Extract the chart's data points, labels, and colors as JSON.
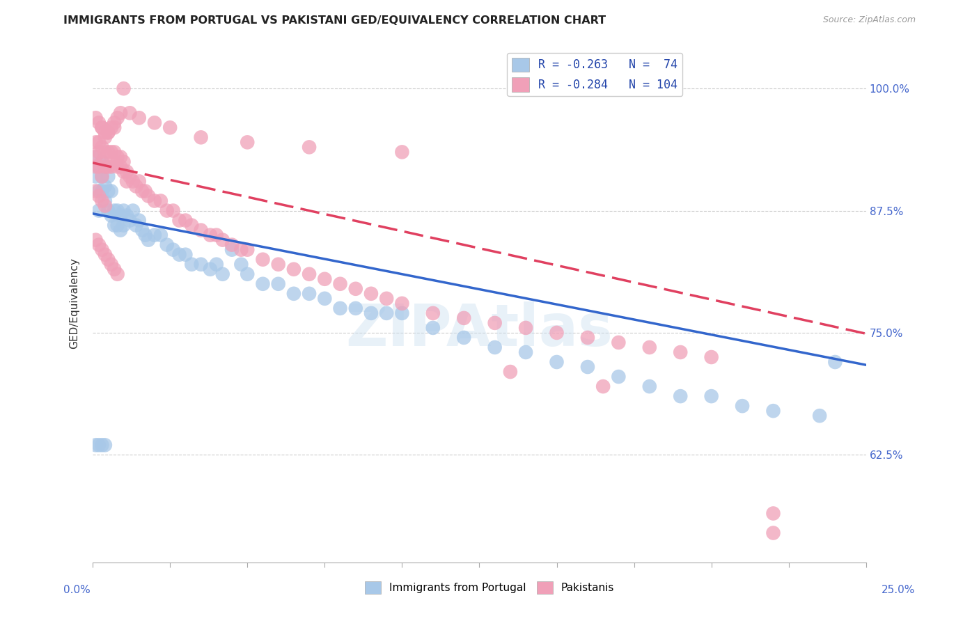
{
  "title": "IMMIGRANTS FROM PORTUGAL VS PAKISTANI GED/EQUIVALENCY CORRELATION CHART",
  "source": "Source: ZipAtlas.com",
  "ylabel": "GED/Equivalency",
  "ytick_labels": [
    "62.5%",
    "75.0%",
    "87.5%",
    "100.0%"
  ],
  "ytick_values": [
    0.625,
    0.75,
    0.875,
    1.0
  ],
  "xlim": [
    0.0,
    0.25
  ],
  "ylim": [
    0.515,
    1.045
  ],
  "legend_blue_r": "R = -0.263",
  "legend_blue_n": "N =  74",
  "legend_pink_r": "R = -0.284",
  "legend_pink_n": "N = 104",
  "blue_color": "#a8c8e8",
  "pink_color": "#f0a0b8",
  "blue_line_color": "#3366cc",
  "pink_line_color": "#e04060",
  "watermark": "ZIPAtlas",
  "blue_intercept": 0.872,
  "blue_slope": -0.62,
  "pink_intercept": 0.924,
  "pink_slope": -0.7,
  "blue_points_x": [
    0.001,
    0.001,
    0.002,
    0.002,
    0.002,
    0.003,
    0.003,
    0.003,
    0.004,
    0.004,
    0.004,
    0.005,
    0.005,
    0.005,
    0.006,
    0.006,
    0.007,
    0.007,
    0.008,
    0.008,
    0.009,
    0.009,
    0.01,
    0.01,
    0.011,
    0.012,
    0.013,
    0.014,
    0.015,
    0.016,
    0.017,
    0.018,
    0.02,
    0.022,
    0.024,
    0.026,
    0.028,
    0.03,
    0.032,
    0.035,
    0.038,
    0.04,
    0.042,
    0.045,
    0.048,
    0.05,
    0.055,
    0.06,
    0.065,
    0.07,
    0.075,
    0.08,
    0.085,
    0.09,
    0.095,
    0.1,
    0.11,
    0.12,
    0.13,
    0.14,
    0.15,
    0.16,
    0.17,
    0.18,
    0.19,
    0.2,
    0.21,
    0.22,
    0.235,
    0.24,
    0.001,
    0.002,
    0.003,
    0.004
  ],
  "blue_points_y": [
    0.93,
    0.91,
    0.895,
    0.875,
    0.92,
    0.91,
    0.895,
    0.925,
    0.9,
    0.885,
    0.92,
    0.895,
    0.91,
    0.875,
    0.895,
    0.87,
    0.875,
    0.86,
    0.875,
    0.86,
    0.87,
    0.855,
    0.875,
    0.86,
    0.87,
    0.865,
    0.875,
    0.86,
    0.865,
    0.855,
    0.85,
    0.845,
    0.85,
    0.85,
    0.84,
    0.835,
    0.83,
    0.83,
    0.82,
    0.82,
    0.815,
    0.82,
    0.81,
    0.835,
    0.82,
    0.81,
    0.8,
    0.8,
    0.79,
    0.79,
    0.785,
    0.775,
    0.775,
    0.77,
    0.77,
    0.77,
    0.755,
    0.745,
    0.735,
    0.73,
    0.72,
    0.715,
    0.705,
    0.695,
    0.685,
    0.685,
    0.675,
    0.67,
    0.665,
    0.72,
    0.635,
    0.635,
    0.635,
    0.635
  ],
  "pink_points_x": [
    0.001,
    0.001,
    0.001,
    0.002,
    0.002,
    0.002,
    0.003,
    0.003,
    0.003,
    0.003,
    0.004,
    0.004,
    0.004,
    0.005,
    0.005,
    0.005,
    0.006,
    0.006,
    0.007,
    0.007,
    0.007,
    0.008,
    0.008,
    0.009,
    0.009,
    0.01,
    0.01,
    0.011,
    0.011,
    0.012,
    0.013,
    0.014,
    0.015,
    0.016,
    0.017,
    0.018,
    0.02,
    0.022,
    0.024,
    0.026,
    0.028,
    0.03,
    0.032,
    0.035,
    0.038,
    0.04,
    0.042,
    0.045,
    0.048,
    0.05,
    0.055,
    0.06,
    0.065,
    0.07,
    0.075,
    0.08,
    0.085,
    0.09,
    0.095,
    0.1,
    0.11,
    0.12,
    0.13,
    0.14,
    0.15,
    0.16,
    0.17,
    0.18,
    0.19,
    0.2,
    0.001,
    0.002,
    0.003,
    0.004,
    0.005,
    0.006,
    0.007,
    0.008,
    0.009,
    0.01,
    0.012,
    0.015,
    0.02,
    0.025,
    0.035,
    0.05,
    0.07,
    0.1,
    0.001,
    0.002,
    0.003,
    0.004,
    0.135,
    0.165,
    0.22,
    0.22,
    0.001,
    0.002,
    0.003,
    0.004,
    0.005,
    0.006,
    0.007,
    0.008
  ],
  "pink_points_y": [
    0.93,
    0.92,
    0.945,
    0.935,
    0.92,
    0.945,
    0.94,
    0.925,
    0.91,
    0.96,
    0.935,
    0.92,
    0.95,
    0.935,
    0.92,
    0.955,
    0.935,
    0.92,
    0.935,
    0.925,
    0.96,
    0.93,
    0.92,
    0.93,
    0.92,
    0.925,
    0.915,
    0.915,
    0.905,
    0.91,
    0.905,
    0.9,
    0.905,
    0.895,
    0.895,
    0.89,
    0.885,
    0.885,
    0.875,
    0.875,
    0.865,
    0.865,
    0.86,
    0.855,
    0.85,
    0.85,
    0.845,
    0.84,
    0.835,
    0.835,
    0.825,
    0.82,
    0.815,
    0.81,
    0.805,
    0.8,
    0.795,
    0.79,
    0.785,
    0.78,
    0.77,
    0.765,
    0.76,
    0.755,
    0.75,
    0.745,
    0.74,
    0.735,
    0.73,
    0.725,
    0.97,
    0.965,
    0.96,
    0.955,
    0.955,
    0.96,
    0.965,
    0.97,
    0.975,
    1.0,
    0.975,
    0.97,
    0.965,
    0.96,
    0.95,
    0.945,
    0.94,
    0.935,
    0.895,
    0.89,
    0.885,
    0.88,
    0.71,
    0.695,
    0.565,
    0.545,
    0.845,
    0.84,
    0.835,
    0.83,
    0.825,
    0.82,
    0.815,
    0.81
  ]
}
